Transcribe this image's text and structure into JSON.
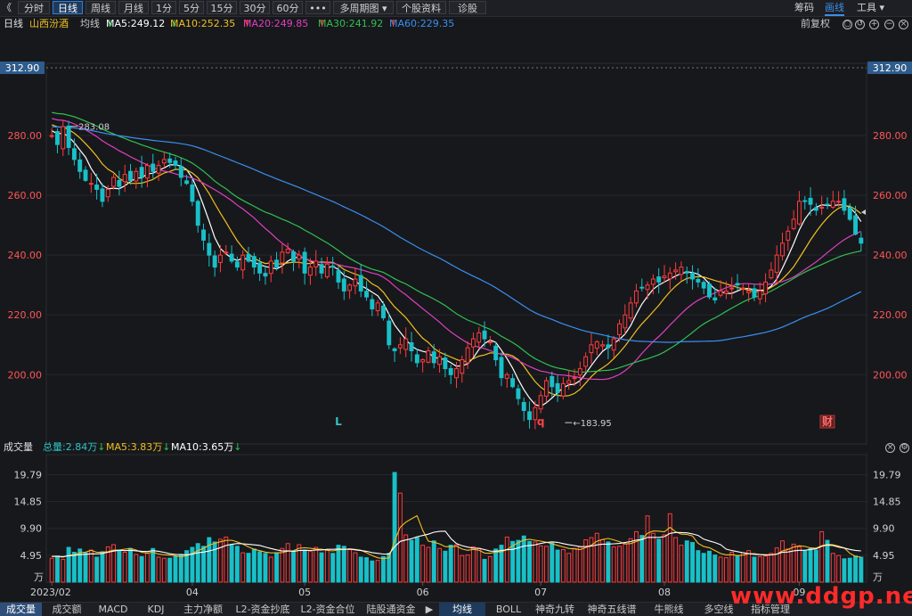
{
  "toolbar": {
    "back_glyph": "《",
    "periods": [
      "分时",
      "日线",
      "周线",
      "月线",
      "1分",
      "5分",
      "15分",
      "30分",
      "60分",
      "•••",
      "多周期图 ▾",
      "个股资料",
      "诊股"
    ],
    "active_period": "日线",
    "right": [
      "筹码",
      "画线",
      "工具 ▾"
    ],
    "right_active": "画线"
  },
  "infobar": {
    "period": "日线",
    "stock": "山西汾酒",
    "indicator": "均线",
    "ma": [
      {
        "label": "MA5:249.12",
        "arrow": "↓",
        "color": "#ffffff"
      },
      {
        "label": "MA10:252.35",
        "arrow": "↓",
        "color": "#f0c020"
      },
      {
        "label": "MA20:249.85",
        "arrow": "↑",
        "color": "#e040c0"
      },
      {
        "label": "MA30:241.92",
        "arrow": "↑",
        "color": "#30c050"
      },
      {
        "label": "MA60:229.35",
        "arrow": "↑",
        "color": "#3a8ff0"
      }
    ],
    "adjust": "前复权"
  },
  "volume_header": {
    "title": "成交量",
    "total": "总量:2.84万",
    "total_arrow": "↓",
    "ma5": "MA5:3.83万",
    "ma5_arrow": "↓",
    "ma10": "MA10:3.65万",
    "ma10_arrow": "↓"
  },
  "tabs": [
    "成交量",
    "成交额",
    "MACD",
    "KDJ",
    "主力净额",
    "L2-资金抄底",
    "L2-资金合位",
    "陆股通资金",
    "▶",
    "均线",
    "BOLL",
    "神奇九转",
    "神奇五线谱",
    "牛熊线",
    "多空线",
    "指标管理"
  ],
  "watermark": "www.ddgp.net",
  "chart_data": [
    {
      "type": "candlestick",
      "name": "price",
      "ylim": [
        181,
        300
      ],
      "yticks": [
        200,
        220,
        240,
        260,
        280
      ],
      "ytick_labels": [
        "200.00",
        "220.00",
        "240.00",
        "260.00",
        "280.00"
      ],
      "price_marker": "312.90",
      "annotations": [
        {
          "text": "283.08",
          "bar": 3,
          "value": 283.08
        },
        {
          "text": "183.95",
          "bar": 91,
          "value": 183.95
        }
      ],
      "event_markers": [
        {
          "text": "L",
          "bar": 51,
          "color": "#2fc4c4"
        },
        {
          "text": "q",
          "bar": 87,
          "color": "#ff4444"
        },
        {
          "text": "财",
          "bar": 138,
          "color": "#ff6a6a",
          "boxed": true
        }
      ],
      "x_labels": [
        {
          "text": "2023/02",
          "bar": 0
        },
        {
          "text": "04",
          "bar": 25
        },
        {
          "text": "05",
          "bar": 45
        },
        {
          "text": "06",
          "bar": 66
        },
        {
          "text": "07",
          "bar": 87
        },
        {
          "text": "08",
          "bar": 109
        },
        {
          "text": "09",
          "bar": 133
        }
      ],
      "ma_colors": {
        "MA5": "#ffffff",
        "MA10": "#f0c020",
        "MA20": "#e040c0",
        "MA30": "#30c050",
        "MA60": "#3a8ff0"
      },
      "ma_start": {
        "MA5": 282,
        "MA10": 284,
        "MA20": 286,
        "MA30": 288,
        "MA60": 283
      },
      "up_color": "#ff3b3b",
      "down_color": "#19c0c8",
      "closes": [
        280,
        277,
        283,
        276,
        272,
        268,
        265,
        264,
        262,
        258,
        262,
        266,
        263,
        267,
        265,
        268,
        266,
        270,
        268,
        270,
        272,
        271,
        270,
        266,
        264,
        258,
        250,
        245,
        240,
        236,
        240,
        241,
        238,
        236,
        240,
        238,
        236,
        234,
        233,
        238,
        236,
        241,
        242,
        238,
        240,
        234,
        236,
        238,
        234,
        237,
        236,
        231,
        228,
        230,
        232,
        228,
        226,
        222,
        224,
        219,
        210,
        208,
        210,
        212,
        208,
        204,
        205,
        208,
        204,
        206,
        202,
        200,
        202,
        205,
        209,
        212,
        214,
        212,
        211,
        205,
        199,
        200,
        196,
        192,
        188,
        185,
        189,
        193,
        198,
        196,
        194,
        197,
        198,
        199,
        202,
        206,
        210,
        211,
        210,
        209,
        212,
        217,
        220,
        224,
        228,
        229,
        230,
        232,
        231,
        233,
        234,
        235,
        236,
        234,
        232,
        231,
        229,
        226,
        225,
        228,
        228,
        229,
        230,
        229,
        228,
        226,
        228,
        231,
        235,
        240,
        244,
        248,
        252,
        258,
        258,
        257,
        255,
        256,
        257,
        258,
        258,
        255,
        252,
        247,
        244
      ]
    },
    {
      "type": "bar",
      "name": "volume",
      "unit": "万",
      "ylim": [
        0,
        22.5
      ],
      "yticks": [
        4.95,
        9.9,
        14.85,
        19.79
      ],
      "ytick_labels": [
        "4.95",
        "9.90",
        "14.85",
        "19.79"
      ],
      "values": [
        4.4,
        4.8,
        4.2,
        6.4,
        5.5,
        6.1,
        5.4,
        5.9,
        4.6,
        5.6,
        6.5,
        6.9,
        5.9,
        5.5,
        6.2,
        5.1,
        4.7,
        5.3,
        6.2,
        4.6,
        4.4,
        4.4,
        4.7,
        5.1,
        5.8,
        6.4,
        7.1,
        6.6,
        8.2,
        7.4,
        7.9,
        8.3,
        6.8,
        6.6,
        5.4,
        5.3,
        6.1,
        5.6,
        5.3,
        4.6,
        5.4,
        6.2,
        7.1,
        5.6,
        6.9,
        5.9,
        5.7,
        6.4,
        5.4,
        5.9,
        5.3,
        6.8,
        6.6,
        6.0,
        5.4,
        4.6,
        4.5,
        3.9,
        4.0,
        4.7,
        5.3,
        20.2,
        16.4,
        8.7,
        7.7,
        8.2,
        6.8,
        6.4,
        7.6,
        6.2,
        5.7,
        6.8,
        6.9,
        4.9,
        5.0,
        6.5,
        6.2,
        4.2,
        4.7,
        6.1,
        6.8,
        8.3,
        7.5,
        7.7,
        8.5,
        7.5,
        7.4,
        6.7,
        6.6,
        7.2,
        5.9,
        6.0,
        5.3,
        6.2,
        6.5,
        7.8,
        8.2,
        9.0,
        7.8,
        7.4,
        6.5,
        6.6,
        7.0,
        8.0,
        9.3,
        8.6,
        12.2,
        9.0,
        7.9,
        8.7,
        12.6,
        8.2,
        6.8,
        7.6,
        7.3,
        5.8,
        5.3,
        5.7,
        5.0,
        4.6,
        4.5,
        5.5,
        4.9,
        5.4,
        5.8,
        4.6,
        4.7,
        4.8,
        5.3,
        6.3,
        7.6,
        6.1,
        7.0,
        6.5,
        5.7,
        6.2,
        5.9,
        9.3,
        7.7,
        5.3,
        4.9,
        4.3,
        4.4,
        4.8,
        4.6
      ]
    }
  ]
}
